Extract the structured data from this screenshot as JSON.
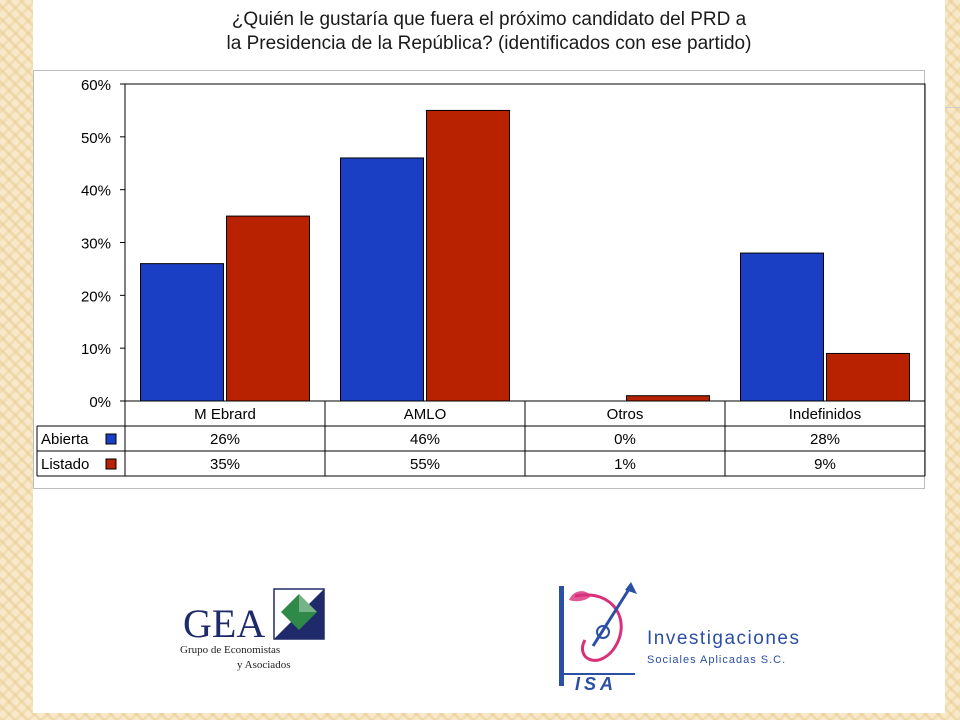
{
  "title_lines": [
    "¿Quién le gustaría que fuera el próximo candidato del PRD a",
    "la Presidencia de la República? (identificados con ese partido)"
  ],
  "chart_data": {
    "type": "bar",
    "title": "¿Quién le gustaría que fuera el próximo candidato del PRD a la Presidencia de la República? (identificados con ese partido)",
    "categories": [
      "M Ebrard",
      "AMLO",
      "Otros",
      "Indefinidos"
    ],
    "series": [
      {
        "name": "Abierta",
        "values": [
          26,
          46,
          0,
          28
        ],
        "labels": [
          "26%",
          "46%",
          "0%",
          "28%"
        ],
        "color": "#1a3fc4"
      },
      {
        "name": "Listado",
        "values": [
          35,
          55,
          1,
          9
        ],
        "labels": [
          "35%",
          "55%",
          "1%",
          "9%"
        ],
        "color": "#b82200"
      }
    ],
    "yticks": [
      "0%",
      "10%",
      "20%",
      "30%",
      "40%",
      "50%",
      "60%"
    ],
    "ylim": [
      0,
      60
    ],
    "grid": false,
    "legend": "data-table"
  },
  "logos": {
    "gea": {
      "name": "GEA",
      "subtitle_line1": "Grupo de Economistas",
      "subtitle_line2": "y Asociados"
    },
    "isa": {
      "mark_text": "ISA",
      "name": "Investigaciones",
      "subtitle": "Sociales Aplicadas S.C."
    }
  }
}
